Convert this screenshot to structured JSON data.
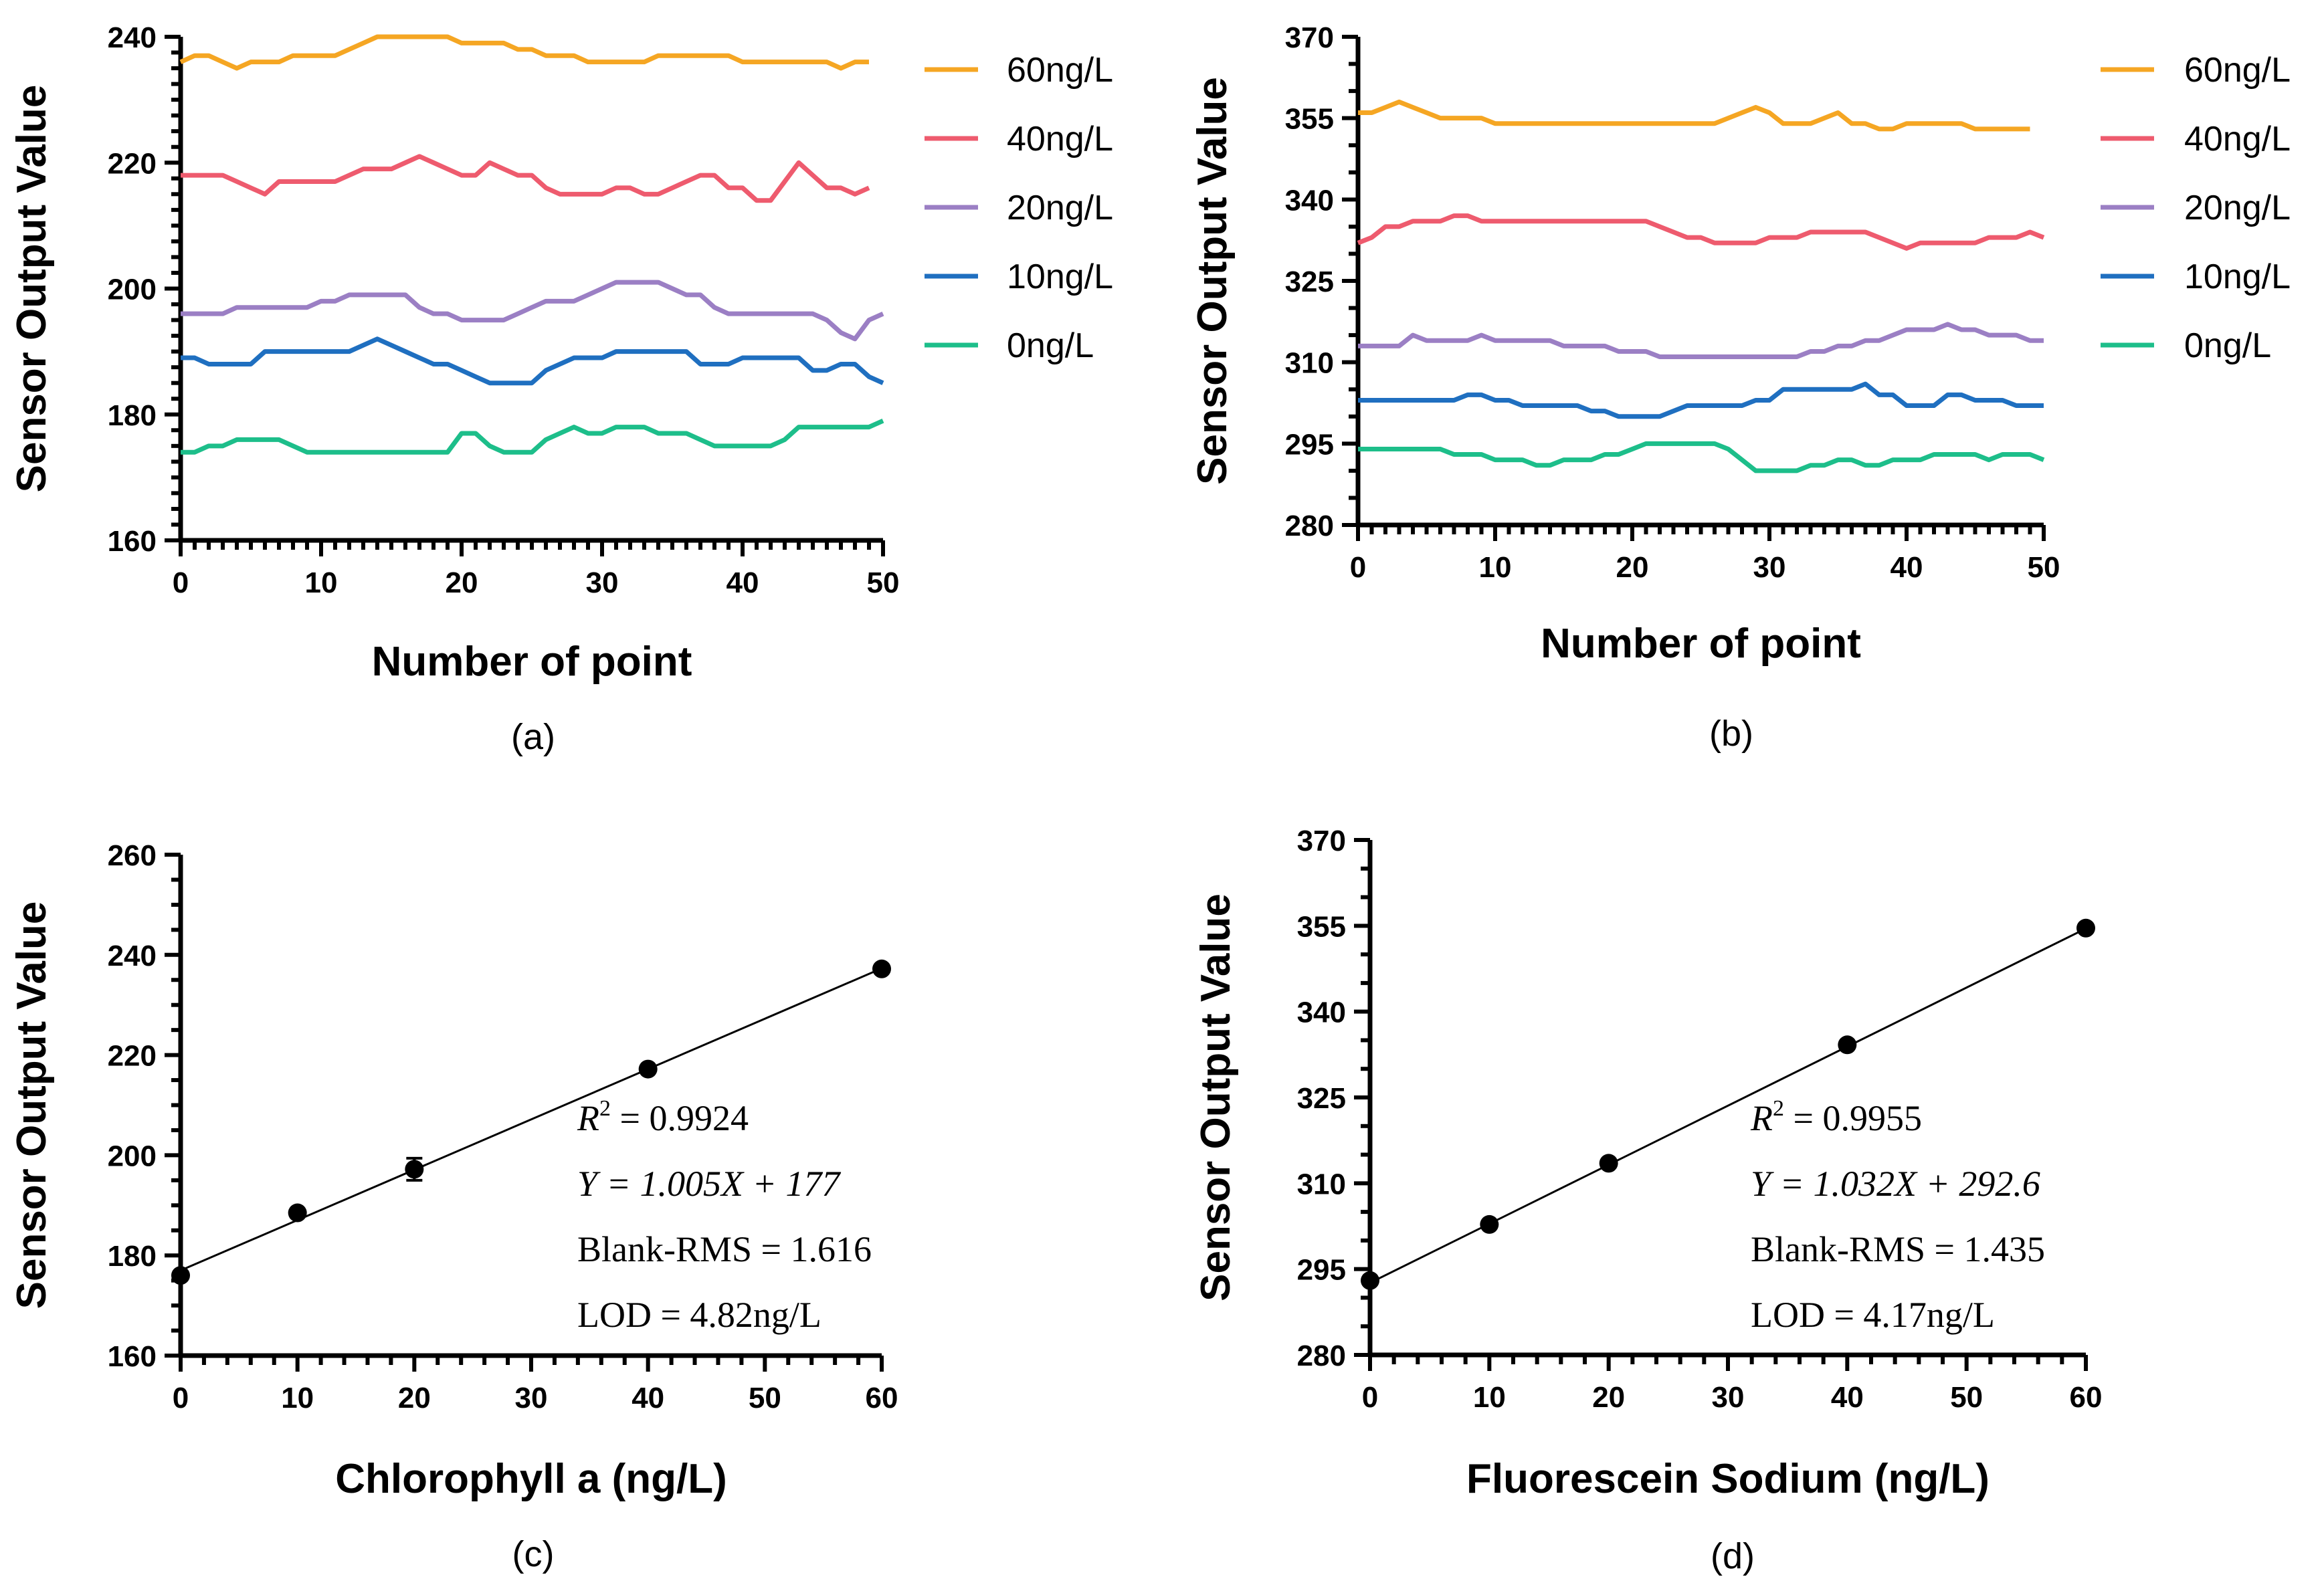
{
  "chart_data": [
    {
      "type": "line",
      "panel_label": "(a)",
      "xlabel": "Number of point",
      "ylabel": "Sensor Output Value",
      "xlim": [
        0,
        50
      ],
      "ylim": [
        160,
        240
      ],
      "xticks": [
        0,
        10,
        20,
        30,
        40,
        50
      ],
      "yticks": [
        160,
        180,
        200,
        220,
        240
      ],
      "legend_position": "right",
      "series": [
        {
          "name": "60ng/L",
          "color": "#F5A623",
          "values": [
            236,
            237,
            237,
            236,
            235,
            236,
            236,
            236,
            237,
            237,
            237,
            237,
            238,
            239,
            240,
            240,
            240,
            240,
            240,
            240,
            239,
            239,
            239,
            239,
            238,
            238,
            237,
            237,
            237,
            236,
            236,
            236,
            236,
            236,
            237,
            237,
            237,
            237,
            237,
            237,
            236,
            236,
            236,
            236,
            236,
            236,
            236,
            235,
            236,
            236
          ]
        },
        {
          "name": "40ng/L",
          "color": "#EE5B6E",
          "values": [
            218,
            218,
            218,
            218,
            217,
            216,
            215,
            217,
            217,
            217,
            217,
            217,
            218,
            219,
            219,
            219,
            220,
            221,
            220,
            219,
            218,
            218,
            220,
            219,
            218,
            218,
            216,
            215,
            215,
            215,
            215,
            216,
            216,
            215,
            215,
            216,
            217,
            218,
            218,
            216,
            216,
            214,
            214,
            217,
            220,
            218,
            216,
            216,
            215,
            216
          ]
        },
        {
          "name": "20ng/L",
          "color": "#9B7FC4",
          "values": [
            196,
            196,
            196,
            196,
            197,
            197,
            197,
            197,
            197,
            197,
            198,
            198,
            199,
            199,
            199,
            199,
            199,
            197,
            196,
            196,
            195,
            195,
            195,
            195,
            196,
            197,
            198,
            198,
            198,
            199,
            200,
            201,
            201,
            201,
            201,
            200,
            199,
            199,
            197,
            196,
            196,
            196,
            196,
            196,
            196,
            196,
            195,
            193,
            192,
            195,
            196
          ]
        },
        {
          "name": "10ng/L",
          "color": "#1F6FC0",
          "values": [
            189,
            189,
            188,
            188,
            188,
            188,
            190,
            190,
            190,
            190,
            190,
            190,
            190,
            191,
            192,
            191,
            190,
            189,
            188,
            188,
            187,
            186,
            185,
            185,
            185,
            185,
            187,
            188,
            189,
            189,
            189,
            190,
            190,
            190,
            190,
            190,
            190,
            188,
            188,
            188,
            189,
            189,
            189,
            189,
            189,
            187,
            187,
            188,
            188,
            186,
            185
          ]
        },
        {
          "name": "0ng/L",
          "color": "#1DBE8A",
          "values": [
            174,
            174,
            175,
            175,
            176,
            176,
            176,
            176,
            175,
            174,
            174,
            174,
            174,
            174,
            174,
            174,
            174,
            174,
            174,
            174,
            177,
            177,
            175,
            174,
            174,
            174,
            176,
            177,
            178,
            177,
            177,
            178,
            178,
            178,
            177,
            177,
            177,
            176,
            175,
            175,
            175,
            175,
            175,
            176,
            178,
            178,
            178,
            178,
            178,
            178,
            179
          ]
        }
      ]
    },
    {
      "type": "line",
      "panel_label": "(b)",
      "xlabel": "Number of point",
      "ylabel": "Sensor Output Value",
      "xlim": [
        0,
        50
      ],
      "ylim": [
        280,
        370
      ],
      "xticks": [
        0,
        10,
        20,
        30,
        40,
        50
      ],
      "yticks": [
        280,
        295,
        310,
        325,
        340,
        355,
        370
      ],
      "legend_position": "right",
      "series": [
        {
          "name": "60ng/L",
          "color": "#F5A623",
          "values": [
            356,
            356,
            357,
            358,
            357,
            356,
            355,
            355,
            355,
            355,
            354,
            354,
            354,
            354,
            354,
            354,
            354,
            354,
            354,
            354,
            354,
            354,
            354,
            354,
            354,
            354,
            354,
            355,
            356,
            357,
            356,
            354,
            354,
            354,
            355,
            356,
            354,
            354,
            353,
            353,
            354,
            354,
            354,
            354,
            354,
            353,
            353,
            353,
            353,
            353
          ]
        },
        {
          "name": "40ng/L",
          "color": "#EE5B6E",
          "values": [
            332,
            333,
            335,
            335,
            336,
            336,
            336,
            337,
            337,
            336,
            336,
            336,
            336,
            336,
            336,
            336,
            336,
            336,
            336,
            336,
            336,
            336,
            335,
            334,
            333,
            333,
            332,
            332,
            332,
            332,
            333,
            333,
            333,
            334,
            334,
            334,
            334,
            334,
            333,
            332,
            331,
            332,
            332,
            332,
            332,
            332,
            333,
            333,
            333,
            334,
            333
          ]
        },
        {
          "name": "20ng/L",
          "color": "#9B7FC4",
          "values": [
            313,
            313,
            313,
            313,
            315,
            314,
            314,
            314,
            314,
            315,
            314,
            314,
            314,
            314,
            314,
            313,
            313,
            313,
            313,
            312,
            312,
            312,
            311,
            311,
            311,
            311,
            311,
            311,
            311,
            311,
            311,
            311,
            311,
            312,
            312,
            313,
            313,
            314,
            314,
            315,
            316,
            316,
            316,
            317,
            316,
            316,
            315,
            315,
            315,
            314,
            314
          ]
        },
        {
          "name": "10ng/L",
          "color": "#1F6FC0",
          "values": [
            303,
            303,
            303,
            303,
            303,
            303,
            303,
            303,
            304,
            304,
            303,
            303,
            302,
            302,
            302,
            302,
            302,
            301,
            301,
            300,
            300,
            300,
            300,
            301,
            302,
            302,
            302,
            302,
            302,
            303,
            303,
            305,
            305,
            305,
            305,
            305,
            305,
            306,
            304,
            304,
            302,
            302,
            302,
            304,
            304,
            303,
            303,
            303,
            302,
            302,
            302
          ]
        },
        {
          "name": "0ng/L",
          "color": "#1DBE8A",
          "values": [
            294,
            294,
            294,
            294,
            294,
            294,
            294,
            293,
            293,
            293,
            292,
            292,
            292,
            291,
            291,
            292,
            292,
            292,
            293,
            293,
            294,
            295,
            295,
            295,
            295,
            295,
            295,
            294,
            292,
            290,
            290,
            290,
            290,
            291,
            291,
            292,
            292,
            291,
            291,
            292,
            292,
            292,
            293,
            293,
            293,
            293,
            292,
            293,
            293,
            293,
            292
          ]
        }
      ]
    },
    {
      "type": "scatter",
      "panel_label": "(c)",
      "xlabel": "Chlorophyll a (ng/L)",
      "ylabel": "Sensor Output Value",
      "xlim": [
        0,
        60
      ],
      "ylim": [
        160,
        260
      ],
      "xticks": [
        0,
        10,
        20,
        30,
        40,
        50,
        60
      ],
      "yticks": [
        160,
        180,
        200,
        220,
        240,
        260
      ],
      "x": [
        0,
        10,
        20,
        40,
        60
      ],
      "y": [
        176,
        188.5,
        197.2,
        217.2,
        237.2
      ],
      "error": [
        0,
        0,
        2.2,
        0,
        0
      ],
      "fit": {
        "slope": 1.005,
        "intercept": 177
      },
      "annotations": {
        "r2_symbol": "R",
        "r2_sup": "2",
        "r2_value": " = 0.9924",
        "equation": "Y = 1.005X  +  177",
        "blank_rms": "Blank-RMS = 1.616",
        "lod": "LOD = 4.82ng/L"
      }
    },
    {
      "type": "scatter",
      "panel_label": "(d)",
      "xlabel": "Fluorescein Sodium (ng/L)",
      "ylabel": "Sensor Output Value",
      "xlim": [
        0,
        60
      ],
      "ylim": [
        280,
        370
      ],
      "xticks": [
        0,
        10,
        20,
        30,
        40,
        50,
        60
      ],
      "yticks": [
        280,
        295,
        310,
        325,
        340,
        355,
        370
      ],
      "x": [
        0,
        10,
        20,
        40,
        60
      ],
      "y": [
        293,
        302.8,
        313.5,
        334.2,
        354.6
      ],
      "error": [
        0,
        0,
        0,
        0,
        0
      ],
      "fit": {
        "slope": 1.032,
        "intercept": 292.6
      },
      "annotations": {
        "r2_symbol": "R",
        "r2_sup": "2",
        "r2_value": " = 0.9955",
        "equation": "Y =  1.032X  +  292.6",
        "blank_rms": "Blank-RMS = 1.435",
        "lod": "LOD = 4.17ng/L"
      }
    }
  ]
}
